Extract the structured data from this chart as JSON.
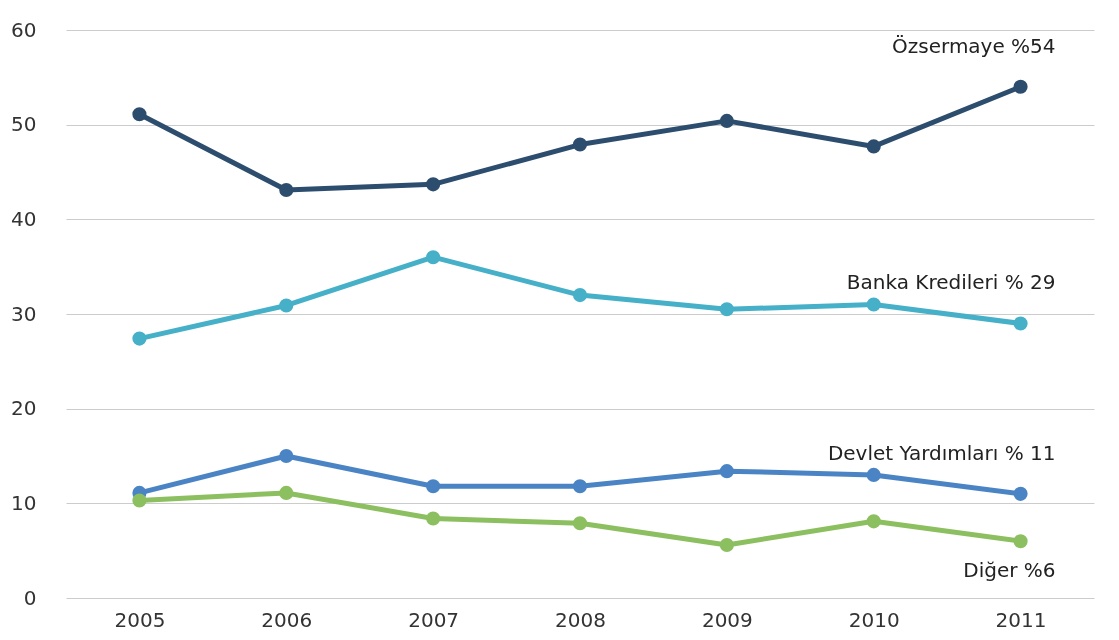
{
  "chart_data": {
    "type": "line",
    "categories": [
      "2005",
      "2006",
      "2007",
      "2008",
      "2009",
      "2010",
      "2011"
    ],
    "series": [
      {
        "name": "Özsermaye %54",
        "color": "#2d4d6e",
        "values": [
          51.1,
          43.1,
          43.7,
          47.9,
          50.4,
          47.7,
          54
        ]
      },
      {
        "name": "Banka Kredileri     % 29",
        "color": "#45b0c8",
        "values": [
          27.4,
          30.9,
          36.0,
          32.0,
          30.5,
          31.0,
          29
        ]
      },
      {
        "name": "Devlet Yardımları % 11",
        "color": "#4a84c4",
        "values": [
          11.1,
          15.0,
          11.8,
          11.8,
          13.4,
          13.0,
          11
        ]
      },
      {
        "name": "Diğer %6",
        "color": "#8cbf5f",
        "values": [
          10.3,
          11.1,
          8.4,
          7.9,
          5.6,
          8.1,
          6
        ]
      }
    ],
    "ylim": [
      0,
      60
    ],
    "yticks": [
      0,
      10,
      20,
      30,
      40,
      50,
      60
    ],
    "grid": "y",
    "marker": "circle",
    "line_style": "solid",
    "legend": false
  }
}
